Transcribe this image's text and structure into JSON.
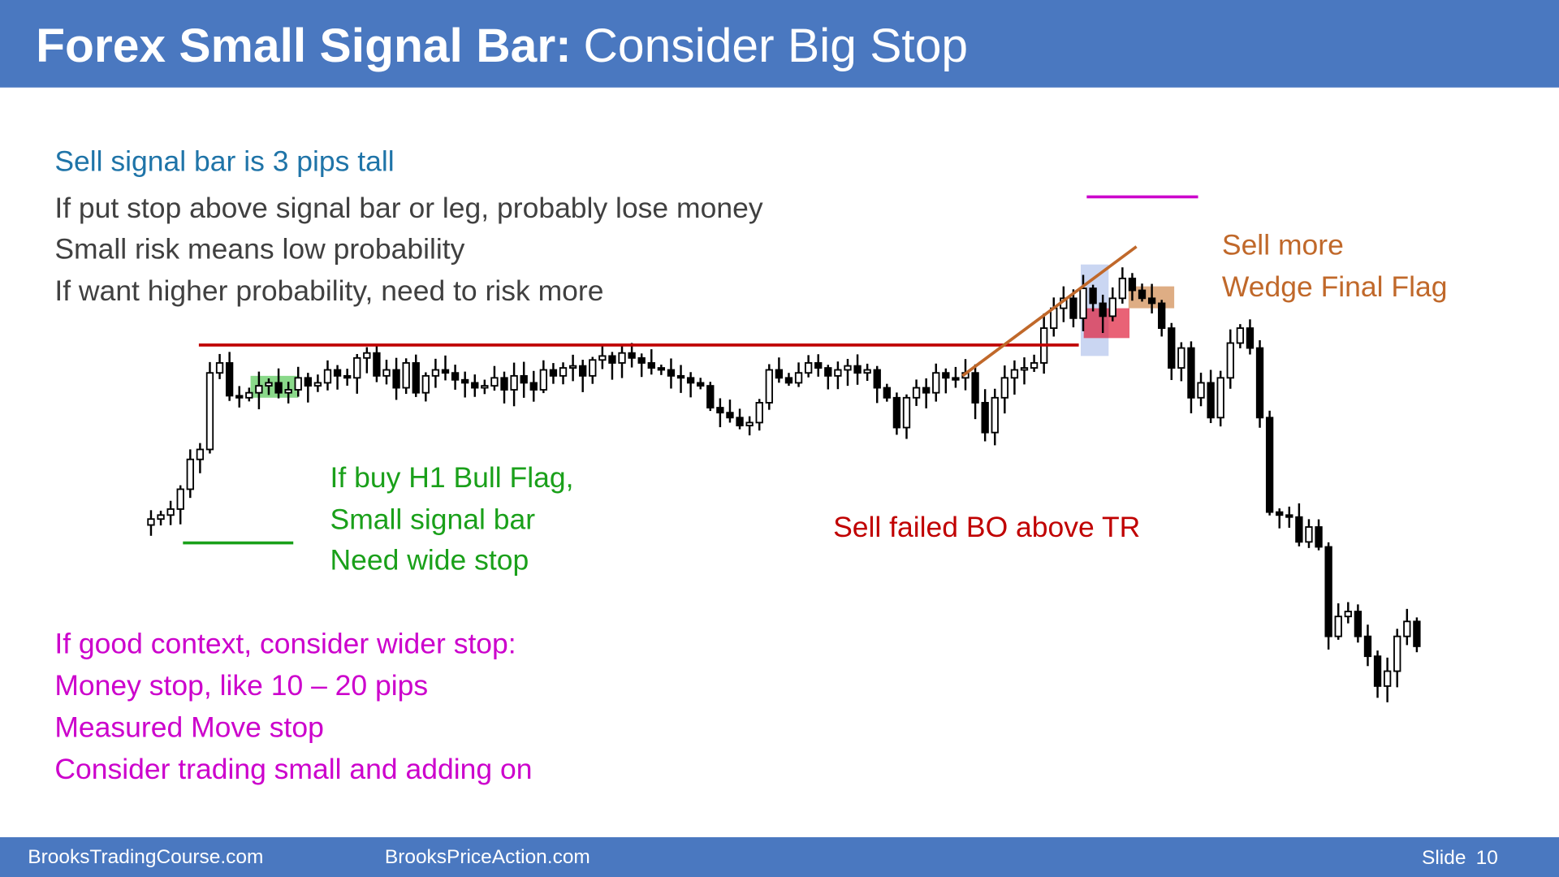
{
  "header": {
    "title_bold": "Forex Small Signal Bar:",
    "title_rest": "Consider Big Stop"
  },
  "intro": {
    "headline": "Sell signal bar is 3 pips tall",
    "lines": [
      "If put stop above signal bar or leg, probably lose money",
      "Small risk means low probability",
      "If want higher probability, need to risk more"
    ]
  },
  "annotations": {
    "bull_flag": [
      "If buy H1 Bull Flag,",
      "Small signal bar",
      "Need wide stop"
    ],
    "failed_bo": "Sell failed BO above TR",
    "wedge": [
      "Sell more",
      "Wedge Final Flag"
    ]
  },
  "context": [
    "If good context, consider wider stop:",
    "Money stop, like 10 – 20 pips",
    "Measured Move stop",
    "Consider trading small and adding on"
  ],
  "footer": {
    "site1": "BrooksTradingCourse.com",
    "site2": "BrooksPriceAction.com",
    "slide_label": "Slide",
    "slide_number": "10"
  }
}
